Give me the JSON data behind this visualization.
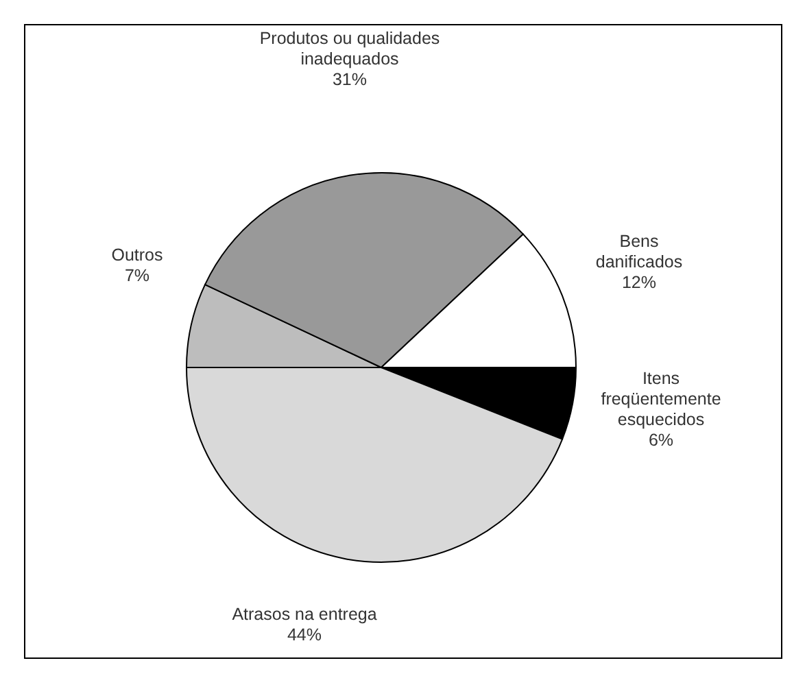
{
  "chart_data": {
    "type": "pie",
    "categories": [
      "Itens freqüentemente esquecidos",
      "Atrasos na entrega",
      "Outros",
      "Produtos ou qualidades inadequados",
      "Bens danificados"
    ],
    "values": [
      6,
      44,
      7,
      31,
      12
    ],
    "value_labels": [
      "6%",
      "44%",
      "7%",
      "31%",
      "12%"
    ],
    "colors": [
      "#000000",
      "#d9d9d9",
      "#bdbdbd",
      "#999999",
      "#ffffff"
    ]
  }
}
